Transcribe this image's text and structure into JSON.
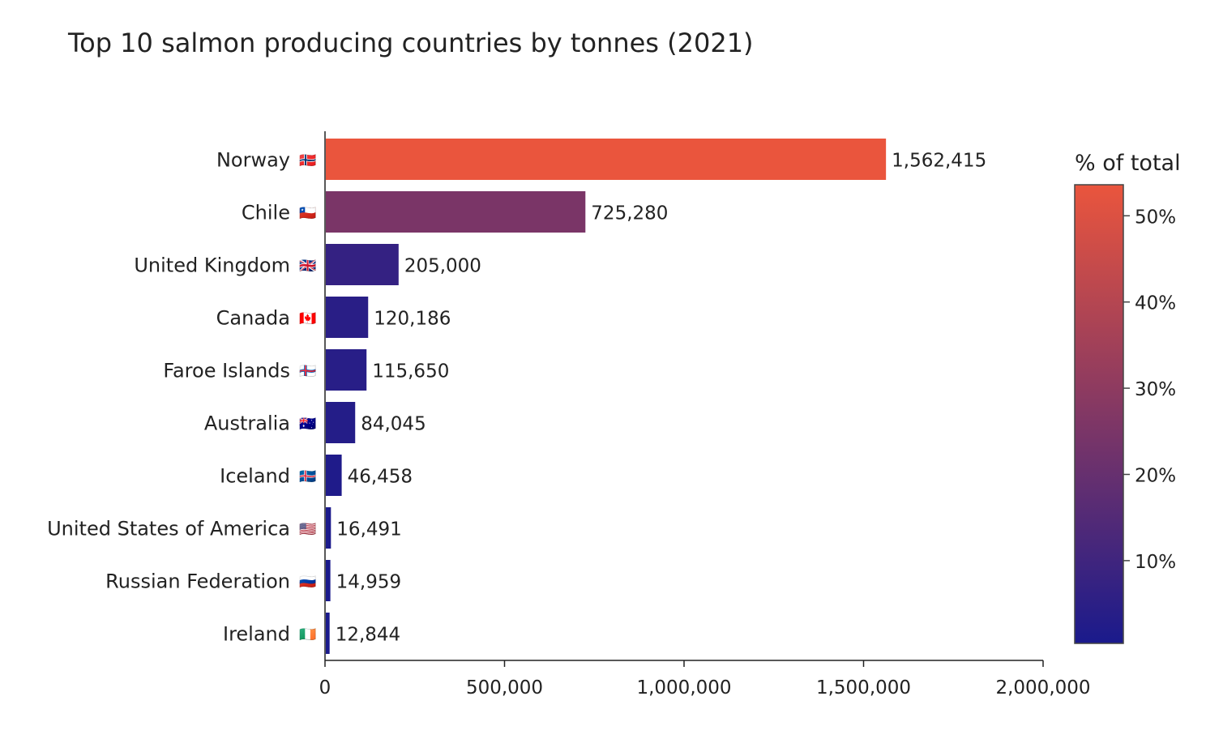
{
  "chart_data": {
    "type": "bar",
    "orientation": "horizontal",
    "title": "Top 10 salmon producing countries by tonnes (2021)",
    "xlabel": "",
    "ylabel": "",
    "xlim": [
      0,
      2000000
    ],
    "x_ticks": [
      0,
      500000,
      1000000,
      1500000,
      2000000
    ],
    "x_tick_labels": [
      "0",
      "500,000",
      "1,000,000",
      "1,500,000",
      "2,000,000"
    ],
    "categories": [
      "Norway",
      "Chile",
      "United Kingdom",
      "Canada",
      "Faroe Islands",
      "Australia",
      "Iceland",
      "United States of America",
      "Russian Federation",
      "Ireland"
    ],
    "flags": [
      "🇳🇴",
      "🇨🇱",
      "🇬🇧",
      "🇨🇦",
      "🇫🇴",
      "🇦🇺",
      "🇮🇸",
      "🇺🇸",
      "🇷🇺",
      "🇮🇪"
    ],
    "values": [
      1562415,
      725280,
      205000,
      120186,
      115650,
      84045,
      46458,
      16491,
      14959,
      12844
    ],
    "value_labels": [
      "1,562,415",
      "725,280",
      "205,000",
      "120,186",
      "115,650",
      "84,045",
      "46,458",
      "16,491",
      "14,959",
      "12,844"
    ],
    "color_by": "% of total",
    "colorbar": {
      "title": "% of total",
      "range": [
        0.4,
        53.6
      ],
      "ticks": [
        10,
        20,
        30,
        40,
        50
      ],
      "tick_labels": [
        "10%",
        "20%",
        "30%",
        "40%",
        "50%"
      ],
      "colorscale": [
        "#1a1a8c",
        "#ea553d"
      ]
    }
  }
}
